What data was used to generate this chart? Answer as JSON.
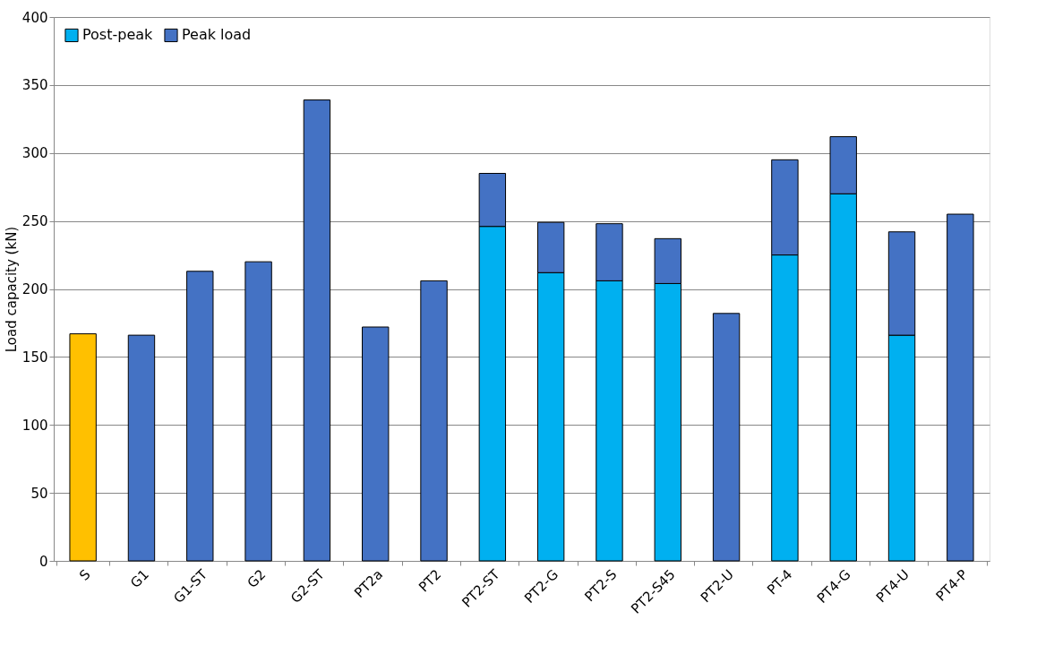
{
  "chart_data": {
    "type": "bar",
    "stacked": true,
    "ylabel": "Load capacity (kN)",
    "categories": [
      "S",
      "G1",
      "G1-ST",
      "G2",
      "G2-ST",
      "PT2a",
      "PT2",
      "PT2-ST",
      "PT2-G",
      "PT2-S",
      "PT2-S45",
      "PT2-U",
      "PT-4",
      "PT4-G",
      "PT4-U",
      "PT4-P"
    ],
    "series": [
      {
        "name": "Post-peak",
        "color": "#00b0f0",
        "values": [
          null,
          null,
          null,
          null,
          null,
          null,
          null,
          246,
          212,
          206,
          204,
          null,
          225,
          270,
          166,
          null
        ]
      },
      {
        "name": "Peak load",
        "color": "#4472c4",
        "colors": [
          "#ffc000",
          "#4472c4",
          "#4472c4",
          "#4472c4",
          "#4472c4",
          "#4472c4",
          "#4472c4",
          "#4472c4",
          "#4472c4",
          "#4472c4",
          "#4472c4",
          "#4472c4",
          "#4472c4",
          "#4472c4",
          "#4472c4",
          "#4472c4"
        ],
        "values": [
          167,
          166,
          213,
          220,
          339,
          172,
          206,
          39,
          37,
          42,
          33,
          182,
          70,
          42,
          76,
          255
        ]
      }
    ],
    "ylim": [
      0,
      400
    ],
    "yticks": [
      0,
      50,
      100,
      150,
      200,
      250,
      300,
      350,
      400
    ],
    "grid": "y",
    "legend": "top left"
  }
}
